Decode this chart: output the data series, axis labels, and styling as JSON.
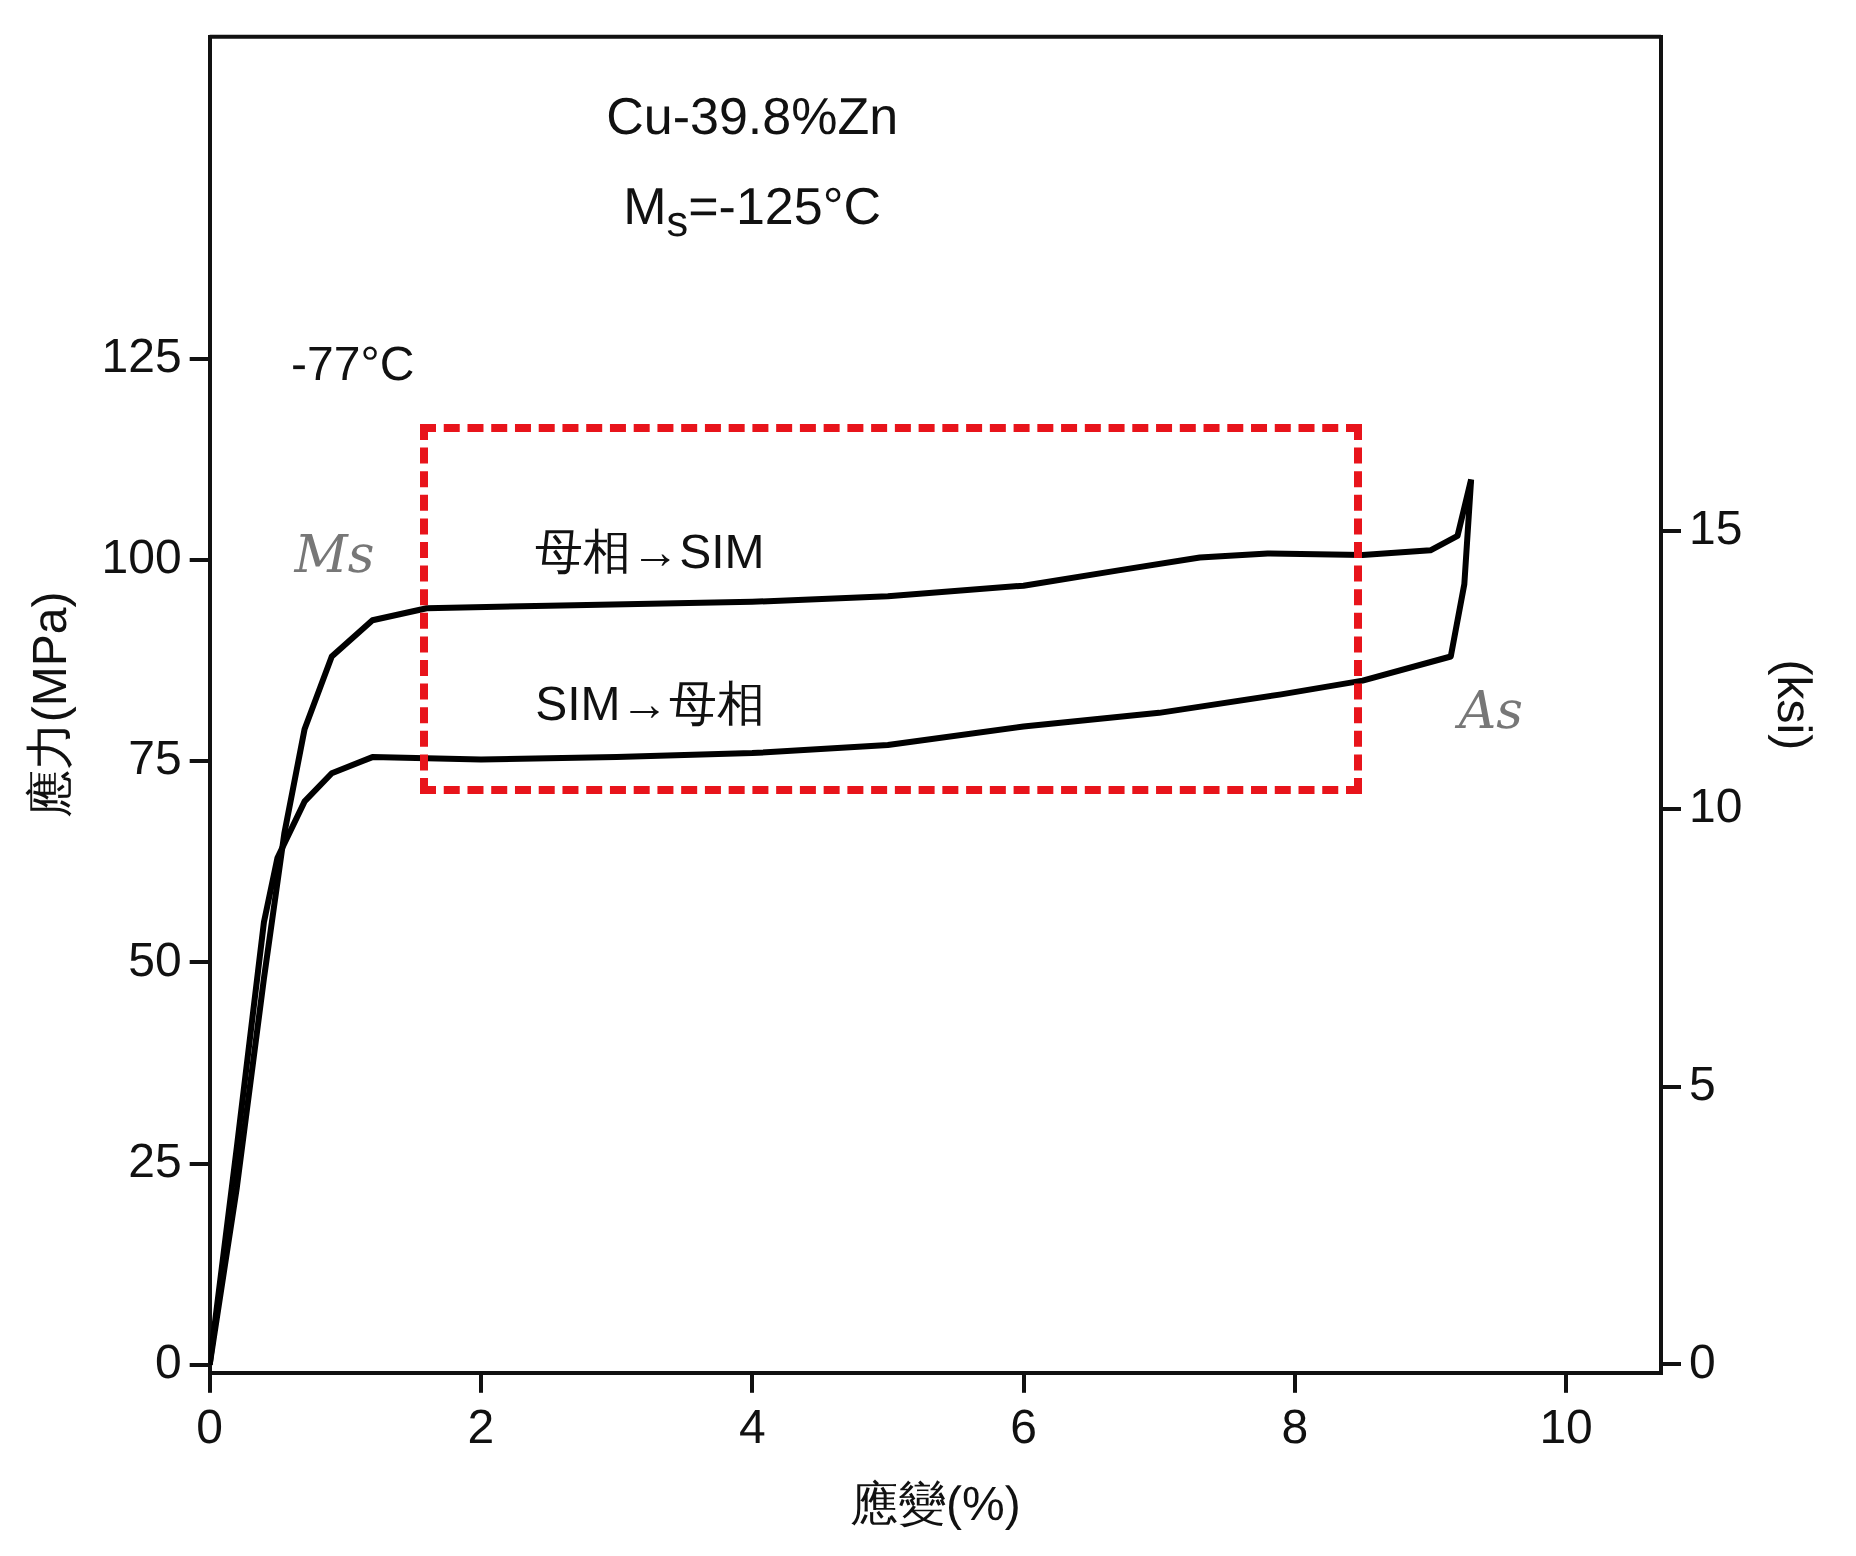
{
  "chart_data": {
    "type": "line",
    "title": "Cu-39.8%Zn",
    "subtitle": "M$_{s}$=-125°C",
    "xlabel": "應變(%)",
    "ylabel": "應力(MPa)",
    "y2label": "(ksi)",
    "annotations": [
      "-77°C",
      {
        "text": "Ms",
        "x": 1.2,
        "y": 92.5
      },
      {
        "text": "As",
        "x": 9.15,
        "y": 88
      }
    ],
    "series": [
      {
        "name": "母相→SIM",
        "color": "#000000",
        "x": [
          0,
          0.2,
          0.4,
          0.55,
          0.7,
          0.9,
          1.2,
          1.6,
          2.5,
          4,
          5,
          6,
          6.7,
          7.3,
          7.8,
          8.5,
          9,
          9.2,
          9.3
        ],
        "values": [
          0,
          22,
          48,
          66,
          79,
          88,
          92.5,
          94,
          94.3,
          94.8,
          95.5,
          96.8,
          98.7,
          100.3,
          100.8,
          100.6,
          101.2,
          103,
          110
        ]
      },
      {
        "name": "SIM→母相",
        "color": "#000000",
        "x": [
          9.3,
          9.25,
          9.15,
          8.5,
          7.9,
          7,
          6,
          5,
          4,
          3,
          2,
          1.2,
          0.9,
          0.7,
          0.5,
          0.4,
          0.2,
          0
        ],
        "values": [
          110,
          97,
          88,
          85,
          83.3,
          81,
          79.3,
          77,
          76,
          75.5,
          75.2,
          75.5,
          73.5,
          70,
          63,
          55,
          27,
          0
        ]
      }
    ],
    "xlim": [
      0,
      10.7
    ],
    "xticks": [
      0,
      2,
      4,
      6,
      8,
      10
    ],
    "ylim": [
      -1,
      165
    ],
    "yticks": [
      0,
      25,
      50,
      75,
      100,
      125
    ],
    "y2lim": [
      -0.15,
      23.9
    ],
    "y2ticks": [
      0,
      5,
      10,
      15
    ]
  }
}
